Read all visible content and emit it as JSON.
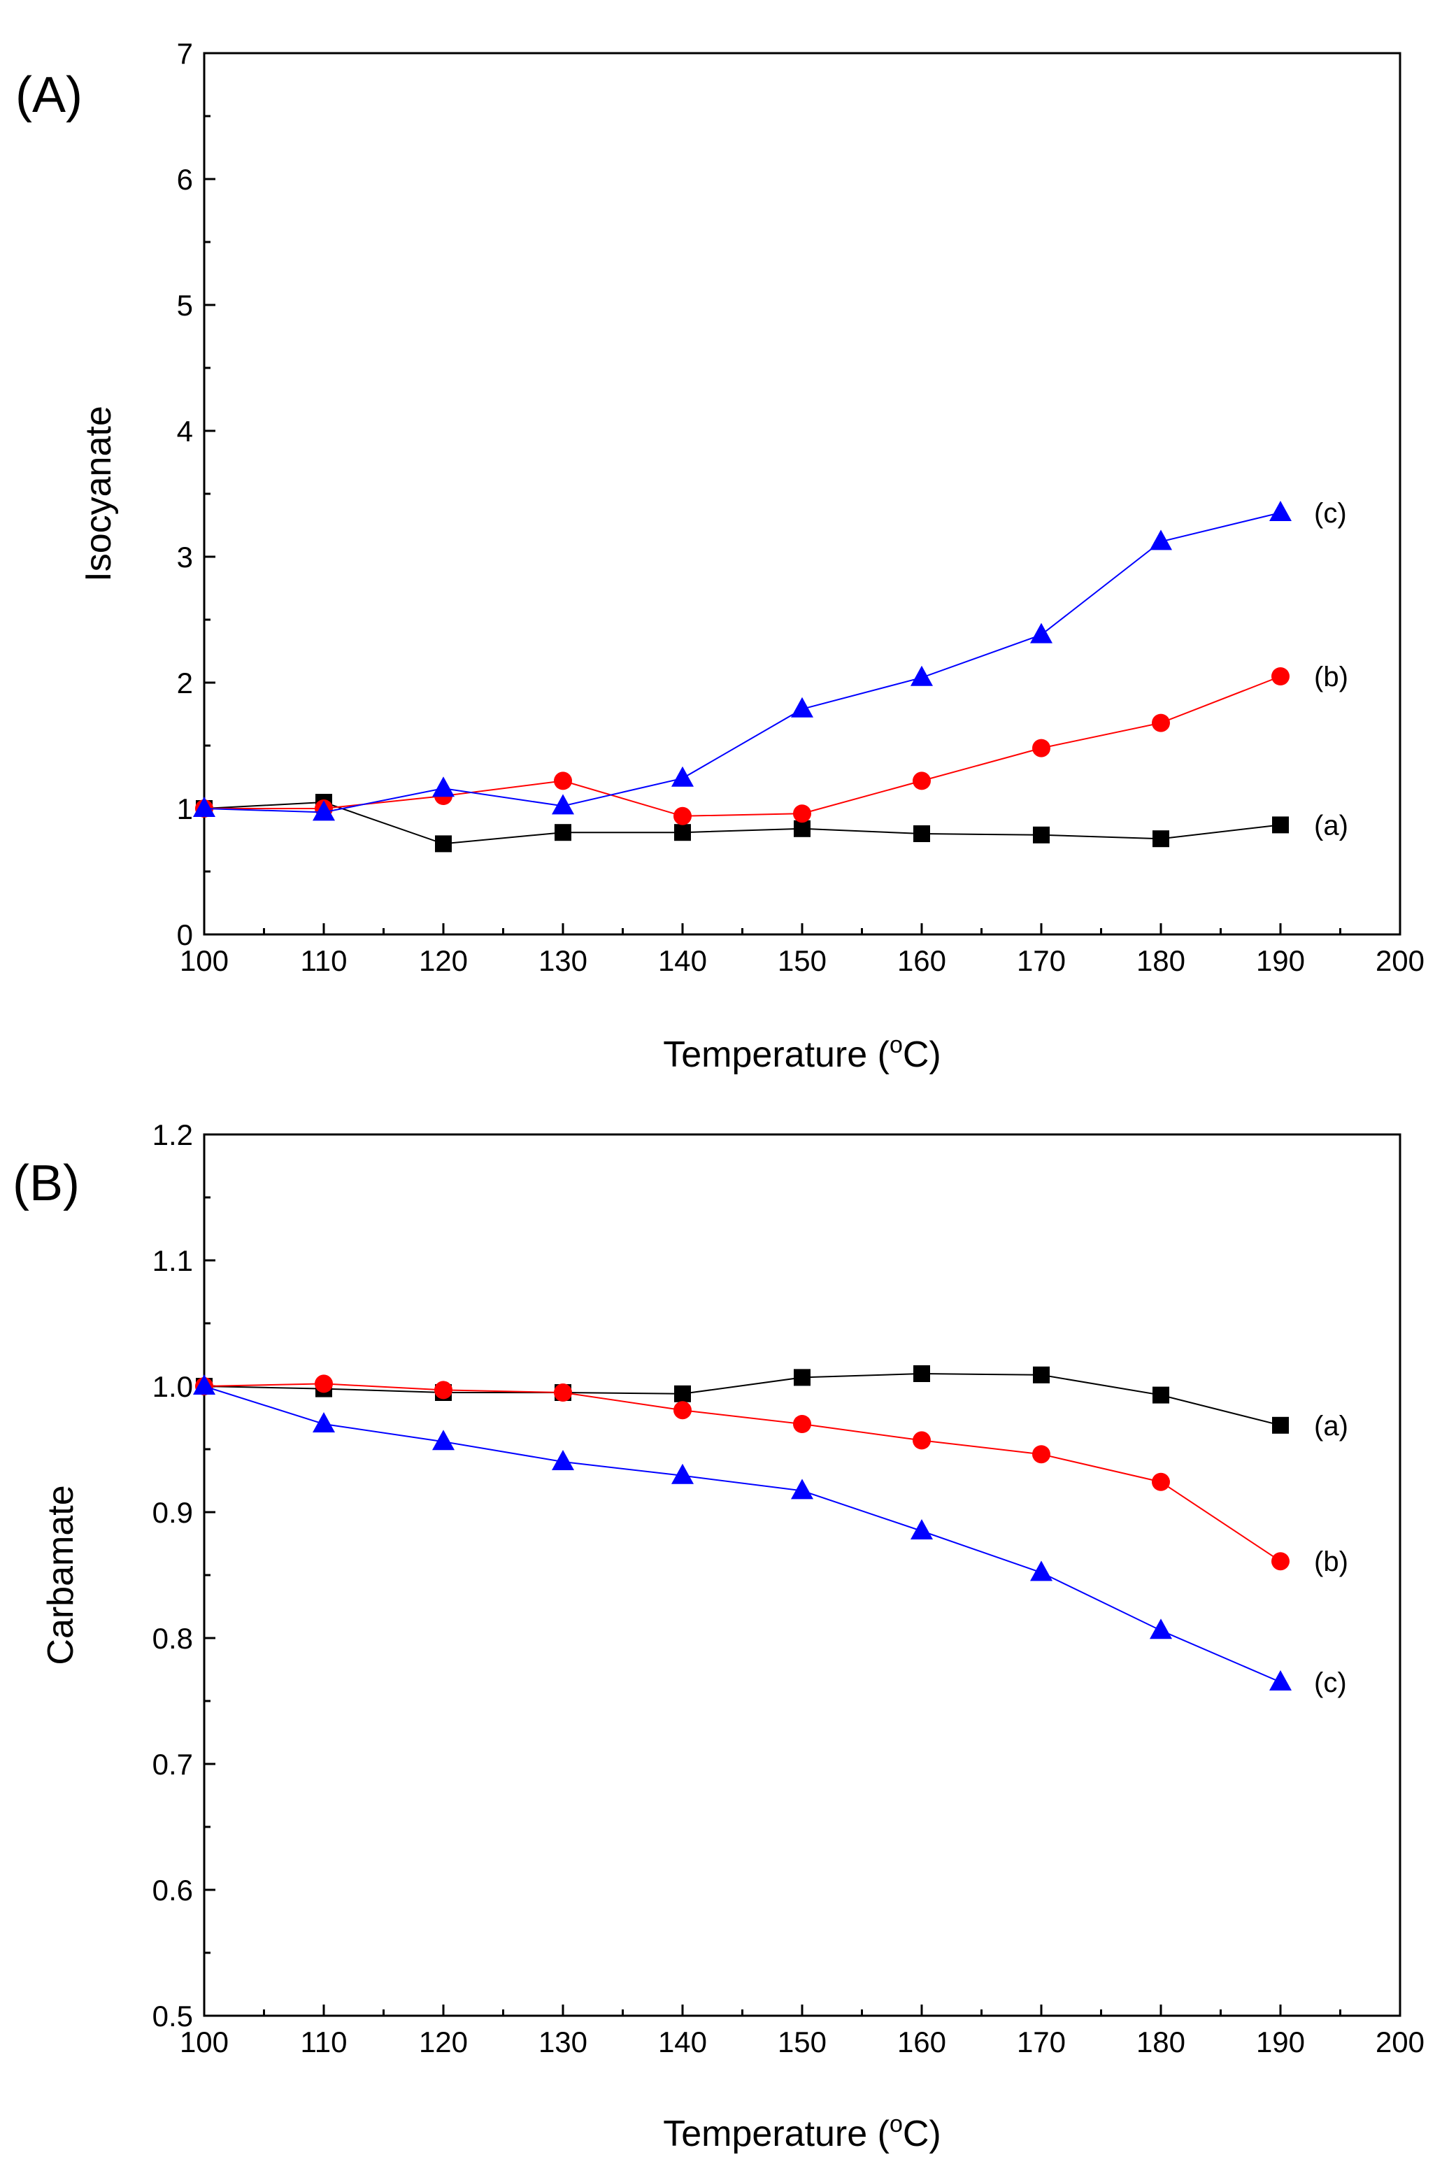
{
  "chart_data": [
    {
      "type": "line",
      "panel_label": "(A)",
      "xlabel": "Temperature (",
      "xlabel_sup": "o",
      "xlabel_end": "C)",
      "ylabel": "Isocyanate",
      "xlim": [
        100,
        200
      ],
      "ylim": [
        0,
        7
      ],
      "x_ticks": [
        100,
        110,
        120,
        130,
        140,
        150,
        160,
        170,
        180,
        190,
        200
      ],
      "y_ticks": [
        0,
        1,
        2,
        3,
        4,
        5,
        6,
        7
      ],
      "y_tick_decimals": 0,
      "x": [
        100,
        110,
        120,
        130,
        140,
        150,
        160,
        170,
        180,
        190
      ],
      "series": [
        {
          "label": "(a)",
          "color": "#000000",
          "marker": "square",
          "values": [
            1.0,
            1.05,
            0.72,
            0.81,
            0.81,
            0.84,
            0.8,
            0.79,
            0.76,
            0.87
          ]
        },
        {
          "label": "(b)",
          "color": "#ff0000",
          "marker": "circle",
          "values": [
            1.0,
            1.0,
            1.1,
            1.22,
            0.94,
            0.96,
            1.22,
            1.48,
            1.68,
            2.05
          ]
        },
        {
          "label": "(c)",
          "color": "#0000ff",
          "marker": "triangle",
          "values": [
            1.0,
            0.97,
            1.16,
            1.02,
            1.24,
            1.79,
            2.04,
            2.38,
            3.12,
            3.35
          ]
        }
      ]
    },
    {
      "type": "line",
      "panel_label": "(B)",
      "xlabel": "Temperature (",
      "xlabel_sup": "o",
      "xlabel_end": "C)",
      "ylabel": "Carbamate",
      "xlim": [
        100,
        200
      ],
      "ylim": [
        0.5,
        1.2
      ],
      "x_ticks": [
        100,
        110,
        120,
        130,
        140,
        150,
        160,
        170,
        180,
        190,
        200
      ],
      "y_ticks": [
        0.5,
        0.6,
        0.7,
        0.8,
        0.9,
        1.0,
        1.1,
        1.2
      ],
      "y_tick_decimals": 1,
      "x": [
        100,
        110,
        120,
        130,
        140,
        150,
        160,
        170,
        180,
        190
      ],
      "series": [
        {
          "label": "(a)",
          "color": "#000000",
          "marker": "square",
          "values": [
            1.0,
            0.998,
            0.995,
            0.995,
            0.994,
            1.007,
            1.01,
            1.009,
            0.993,
            0.969
          ]
        },
        {
          "label": "(b)",
          "color": "#ff0000",
          "marker": "circle",
          "values": [
            1.0,
            1.002,
            0.997,
            0.995,
            0.981,
            0.97,
            0.957,
            0.946,
            0.924,
            0.861
          ]
        },
        {
          "label": "(c)",
          "color": "#0000ff",
          "marker": "triangle",
          "values": [
            1.0,
            0.97,
            0.956,
            0.94,
            0.929,
            0.917,
            0.885,
            0.852,
            0.806,
            0.765
          ]
        }
      ]
    }
  ]
}
